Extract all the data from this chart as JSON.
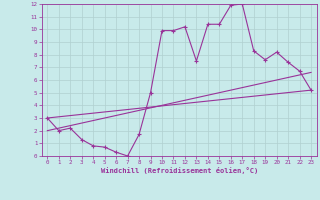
{
  "title": "",
  "xlabel": "Windchill (Refroidissement éolien,°C)",
  "ylabel": "",
  "background_color": "#c8eaea",
  "grid_color": "#b0d0d0",
  "line_color": "#993399",
  "xlim": [
    -0.5,
    23.5
  ],
  "ylim": [
    0,
    12
  ],
  "xticks": [
    0,
    1,
    2,
    3,
    4,
    5,
    6,
    7,
    8,
    9,
    10,
    11,
    12,
    13,
    14,
    15,
    16,
    17,
    18,
    19,
    20,
    21,
    22,
    23
  ],
  "yticks": [
    0,
    1,
    2,
    3,
    4,
    5,
    6,
    7,
    8,
    9,
    10,
    11,
    12
  ],
  "line1_x": [
    0,
    1,
    2,
    3,
    4,
    5,
    6,
    7,
    8,
    9,
    10,
    11,
    12,
    13,
    14,
    15,
    16,
    17,
    18,
    19,
    20,
    21,
    22,
    23
  ],
  "line1_y": [
    3.0,
    2.0,
    2.2,
    1.3,
    0.8,
    0.7,
    0.3,
    0.0,
    1.7,
    5.0,
    9.9,
    9.9,
    10.2,
    7.5,
    10.4,
    10.4,
    11.9,
    12.0,
    8.3,
    7.6,
    8.2,
    7.4,
    6.7,
    5.2
  ],
  "line2_x": [
    0,
    23
  ],
  "line2_y": [
    3.0,
    5.2
  ],
  "line3_x": [
    0,
    23
  ],
  "line3_y": [
    2.0,
    6.6
  ]
}
